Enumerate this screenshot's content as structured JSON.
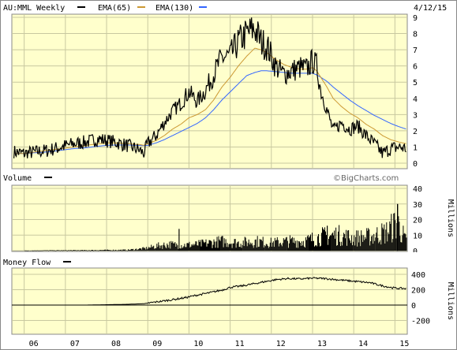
{
  "header": {
    "symbol": "AU:MML Weekly",
    "ema65_label": "EMA(65)",
    "ema130_label": "EMA(130)",
    "date": "4/12/15"
  },
  "volume_panel": {
    "label": "Volume",
    "unit": "Millions"
  },
  "moneyflow_panel": {
    "label": "Money Flow",
    "unit": "Millions"
  },
  "watermark": "©BigCharts.com",
  "colors": {
    "panel_bg": "#ffffcc",
    "price": "#000000",
    "ema65": "#cc9933",
    "ema130": "#3366ff",
    "grid": "#c8c8a0"
  },
  "chart_data": [
    {
      "type": "line",
      "title": "AU:MML Weekly",
      "x_categories": [
        "06",
        "07",
        "08",
        "09",
        "10",
        "11",
        "12",
        "13",
        "14",
        "15"
      ],
      "ylim": [
        0,
        9
      ],
      "y_ticks": [
        "0",
        "1",
        "2",
        "3",
        "4",
        "5",
        "6",
        "7",
        "8",
        "9"
      ],
      "x": [
        2005.75,
        2006.0,
        2006.3,
        2006.6,
        2006.9,
        2007.2,
        2007.5,
        2007.8,
        2008.0,
        2008.2,
        2008.5,
        2008.8,
        2008.9,
        2009.0,
        2009.2,
        2009.4,
        2009.6,
        2009.8,
        2010.0,
        2010.2,
        2010.4,
        2010.6,
        2010.8,
        2011.0,
        2011.2,
        2011.4,
        2011.6,
        2011.75,
        2011.9,
        2012.1,
        2012.3,
        2012.5,
        2012.7,
        2012.85,
        2013.0,
        2013.1,
        2013.2,
        2013.35,
        2013.5,
        2013.7,
        2013.9,
        2014.1,
        2014.3,
        2014.5,
        2014.7,
        2014.9,
        2015.1,
        2015.28
      ],
      "series": [
        {
          "name": "AU:MML Weekly",
          "values": [
            0.7,
            0.6,
            0.7,
            0.8,
            1.0,
            1.2,
            1.3,
            1.5,
            1.4,
            1.3,
            1.1,
            0.8,
            0.6,
            1.2,
            1.7,
            2.5,
            3.2,
            3.7,
            4.4,
            3.8,
            4.5,
            5.5,
            6.5,
            6.6,
            7.5,
            8.0,
            8.3,
            7.5,
            7.2,
            6.0,
            5.5,
            5.7,
            5.9,
            5.8,
            6.3,
            6.0,
            4.5,
            3.3,
            2.0,
            2.5,
            2.1,
            2.3,
            1.7,
            1.2,
            0.6,
            0.9,
            1.0,
            0.9
          ]
        },
        {
          "name": "EMA(65)",
          "values": [
            0.6,
            0.6,
            0.7,
            0.8,
            0.9,
            1.0,
            1.1,
            1.2,
            1.25,
            1.25,
            1.2,
            1.15,
            1.1,
            1.2,
            1.4,
            1.7,
            2.1,
            2.4,
            2.8,
            3.0,
            3.3,
            3.9,
            4.7,
            5.3,
            6.0,
            6.6,
            7.1,
            7.0,
            6.8,
            6.4,
            6.1,
            5.9,
            5.8,
            5.8,
            5.9,
            5.7,
            5.3,
            4.7,
            4.0,
            3.5,
            3.1,
            2.8,
            2.4,
            2.1,
            1.7,
            1.45,
            1.3,
            1.2
          ]
        },
        {
          "name": "EMA(130)",
          "values": [
            0.6,
            0.6,
            0.65,
            0.7,
            0.8,
            0.9,
            0.95,
            1.05,
            1.1,
            1.12,
            1.12,
            1.1,
            1.08,
            1.1,
            1.25,
            1.45,
            1.7,
            1.95,
            2.2,
            2.45,
            2.8,
            3.3,
            3.9,
            4.4,
            4.9,
            5.4,
            5.6,
            5.7,
            5.7,
            5.65,
            5.6,
            5.55,
            5.55,
            5.55,
            5.55,
            5.45,
            5.3,
            5.05,
            4.7,
            4.3,
            3.9,
            3.55,
            3.25,
            2.95,
            2.7,
            2.45,
            2.25,
            2.1
          ]
        }
      ]
    },
    {
      "type": "bar",
      "title": "Volume",
      "ylabel": "Millions",
      "ylim": [
        0,
        40
      ],
      "y_ticks": [
        "0",
        "10",
        "20",
        "30",
        "40"
      ],
      "x": [
        2005.75,
        2006.5,
        2007.5,
        2008.5,
        2008.95,
        2009.2,
        2009.5,
        2009.8,
        2010.2,
        2010.5,
        2010.8,
        2011.2,
        2011.6,
        2012.0,
        2012.4,
        2012.8,
        2013.2,
        2013.6,
        2014.0,
        2014.4,
        2014.8,
        2015.05,
        2015.28
      ],
      "series": [
        {
          "name": "Volume",
          "values": [
            0,
            0.2,
            0.3,
            0.5,
            1.5,
            3,
            4,
            3.5,
            4,
            5,
            6,
            5,
            6,
            5,
            6,
            6,
            9,
            10,
            8,
            9,
            12,
            18,
            5
          ]
        }
      ],
      "peaks": [
        {
          "x": 2009.75,
          "value": 14
        },
        {
          "x": 2013.35,
          "value": 16
        },
        {
          "x": 2015.05,
          "value": 30
        }
      ]
    },
    {
      "type": "line",
      "title": "Money Flow",
      "ylabel": "Millions",
      "ylim": [
        -300,
        400
      ],
      "y_ticks": [
        "400",
        "200",
        "0",
        "-200"
      ],
      "x": [
        2005.75,
        2006.5,
        2007.5,
        2008.0,
        2008.5,
        2008.9,
        2009.2,
        2009.6,
        2009.9,
        2010.2,
        2010.5,
        2010.8,
        2011.0,
        2011.3,
        2011.6,
        2011.9,
        2012.1,
        2012.4,
        2012.7,
        2013.0,
        2013.3,
        2013.6,
        2014.0,
        2014.4,
        2014.7,
        2015.0,
        2015.28
      ],
      "series": [
        {
          "name": "Money Flow",
          "values": [
            0,
            0,
            0,
            5,
            10,
            18,
            40,
            70,
            95,
            130,
            160,
            195,
            230,
            250,
            280,
            310,
            330,
            345,
            340,
            350,
            345,
            330,
            310,
            290,
            250,
            220,
            215
          ]
        }
      ]
    }
  ]
}
